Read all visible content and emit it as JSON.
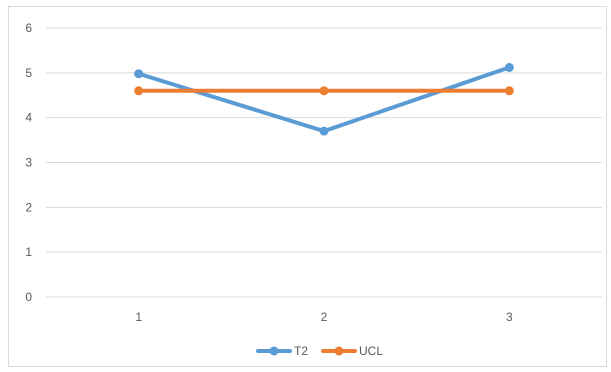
{
  "chart_data": {
    "type": "line",
    "title": "",
    "xlabel": "",
    "ylabel": "",
    "categories": [
      "1",
      "2",
      "3"
    ],
    "ylim": [
      0,
      6
    ],
    "yticks": [
      0,
      1,
      2,
      3,
      4,
      5,
      6
    ],
    "grid": true,
    "legend_position": "bottom",
    "series": [
      {
        "name": "T2",
        "values": [
          4.98,
          3.7,
          5.12
        ],
        "color": "#5b9bd5"
      },
      {
        "name": "UCL",
        "values": [
          4.6,
          4.6,
          4.6
        ],
        "color": "#ed7d31"
      }
    ]
  }
}
